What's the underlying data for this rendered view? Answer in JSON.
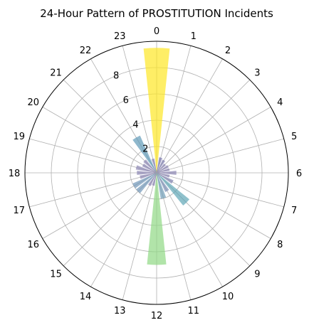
{
  "chart_data": {
    "type": "polar-bar",
    "title": "24-Hour Pattern of PROSTITUTION Incidents",
    "hours": [
      0,
      1,
      2,
      3,
      4,
      5,
      6,
      7,
      8,
      9,
      10,
      11,
      12,
      13,
      14,
      15,
      16,
      17,
      18,
      19,
      20,
      21,
      22,
      23
    ],
    "hour_labels": [
      "0",
      "1",
      "2",
      "3",
      "4",
      "5",
      "6",
      "7",
      "8",
      "9",
      "10",
      "11",
      "12",
      "13",
      "14",
      "15",
      "16",
      "17",
      "18",
      "19",
      "20",
      "21",
      "22",
      "23"
    ],
    "values": [
      9.5,
      1.2,
      1.1,
      0.9,
      1.0,
      1.0,
      1.5,
      1.0,
      1.4,
      3.2,
      1.6,
      2.0,
      7.0,
      1.0,
      1.1,
      2.0,
      2.0,
      1.3,
      1.5,
      1.6,
      1.2,
      1.3,
      3.1,
      1.1
    ],
    "colors": [
      "#fde725",
      "#7a78ae",
      "#8080b0",
      "#8a84b2",
      "#8a84b2",
      "#8a84b2",
      "#8a84b2",
      "#8a84b2",
      "#8284b0",
      "#5fa6b7",
      "#7a8eb5",
      "#6f9cb6",
      "#90d985",
      "#8a84b2",
      "#8a84b2",
      "#6f95b8",
      "#6f95b8",
      "#8a84b2",
      "#8a84b2",
      "#8a84b2",
      "#8a84b2",
      "#8a84b2",
      "#5f9ab8",
      "#8a84b2"
    ],
    "radial_ticks": [
      2,
      4,
      6,
      8
    ],
    "rlim": [
      0,
      10
    ],
    "direction": "clockwise",
    "zero_location": "top",
    "grid": true
  }
}
